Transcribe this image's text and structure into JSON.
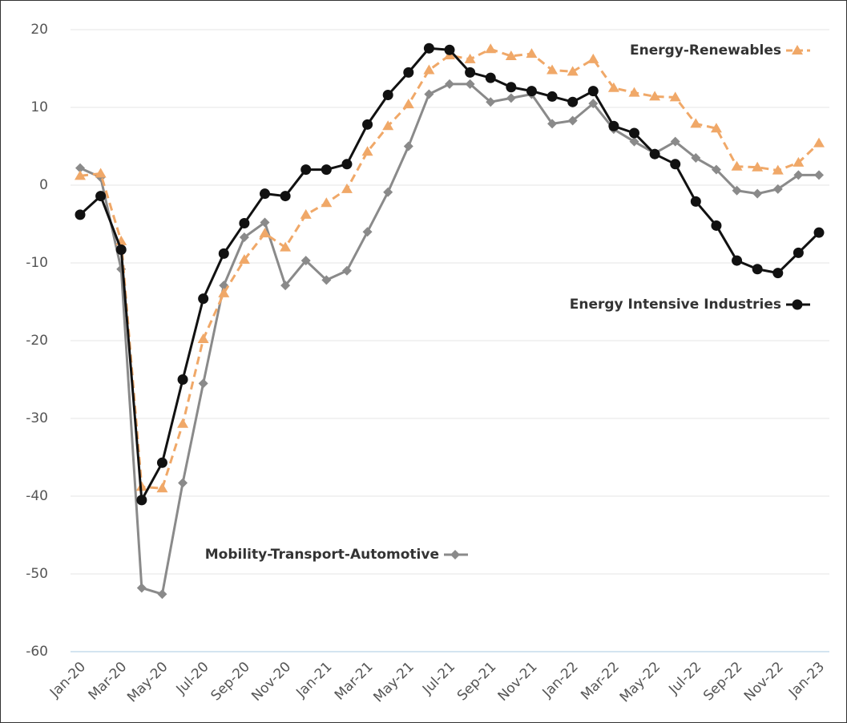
{
  "chart_data": {
    "type": "line",
    "categories": [
      "Jan-20",
      null,
      "Mar-20",
      null,
      "May-20",
      null,
      "Jul-20",
      null,
      "Sep-20",
      null,
      "Nov-20",
      null,
      "Jan-21",
      null,
      "Mar-21",
      null,
      "May-21",
      null,
      "Jul-21",
      null,
      "Sep-21",
      null,
      "Nov-21",
      null,
      "Jan-22",
      null,
      "Mar-22",
      null,
      "May-22",
      null,
      "Jul-22",
      null,
      "Sep-22",
      null,
      "Nov-22",
      null,
      "Jan-23"
    ],
    "series": [
      {
        "name": "Energy-Renewables",
        "color": "#f0a868",
        "dash": true,
        "marker": "triangle",
        "values": [
          1.2,
          1.5,
          -7.2,
          -38.8,
          -39.0,
          -30.7,
          -19.8,
          -13.9,
          -9.6,
          -6.2,
          -8.0,
          -3.8,
          -2.3,
          -0.5,
          4.3,
          7.6,
          10.4,
          14.8,
          16.7,
          16.2,
          17.5,
          16.6,
          16.9,
          14.8,
          14.6,
          16.2,
          12.5,
          11.9,
          11.4,
          11.3,
          7.9,
          7.3,
          2.4,
          2.3,
          1.9,
          2.9,
          5.4
        ]
      },
      {
        "name": "Energy Intensive Industries",
        "color": "#111111",
        "dash": false,
        "marker": "circle",
        "values": [
          -3.8,
          -1.4,
          -8.3,
          -40.5,
          -35.7,
          -25.0,
          -14.6,
          -8.8,
          -4.9,
          -1.1,
          -1.4,
          2.0,
          2.0,
          2.7,
          7.8,
          11.6,
          14.5,
          17.6,
          17.4,
          14.5,
          13.8,
          12.6,
          12.1,
          11.4,
          10.7,
          12.1,
          7.6,
          6.7,
          4.0,
          2.7,
          -2.1,
          -5.2,
          -9.7,
          -10.8,
          -11.3,
          -8.7,
          -6.1
        ]
      },
      {
        "name": "Mobility-Transport-Automotive",
        "color": "#8a8a8a",
        "dash": false,
        "marker": "diamond",
        "values": [
          2.2,
          1.0,
          -10.8,
          -51.8,
          -52.6,
          -38.3,
          -25.5,
          -12.9,
          -6.7,
          -4.8,
          -12.9,
          -9.7,
          -12.2,
          -11.0,
          -6.0,
          -0.9,
          5.0,
          11.7,
          13.0,
          13.0,
          10.7,
          11.2,
          11.7,
          7.9,
          8.3,
          10.5,
          7.2,
          5.6,
          4.1,
          5.6,
          3.5,
          2.0,
          -0.7,
          -1.1,
          -0.5,
          1.3,
          1.3
        ]
      }
    ],
    "ylim": [
      -60,
      20
    ],
    "yticks": [
      20,
      10,
      0,
      -10,
      -20,
      -30,
      -40,
      -50,
      -60
    ],
    "grid": true
  }
}
